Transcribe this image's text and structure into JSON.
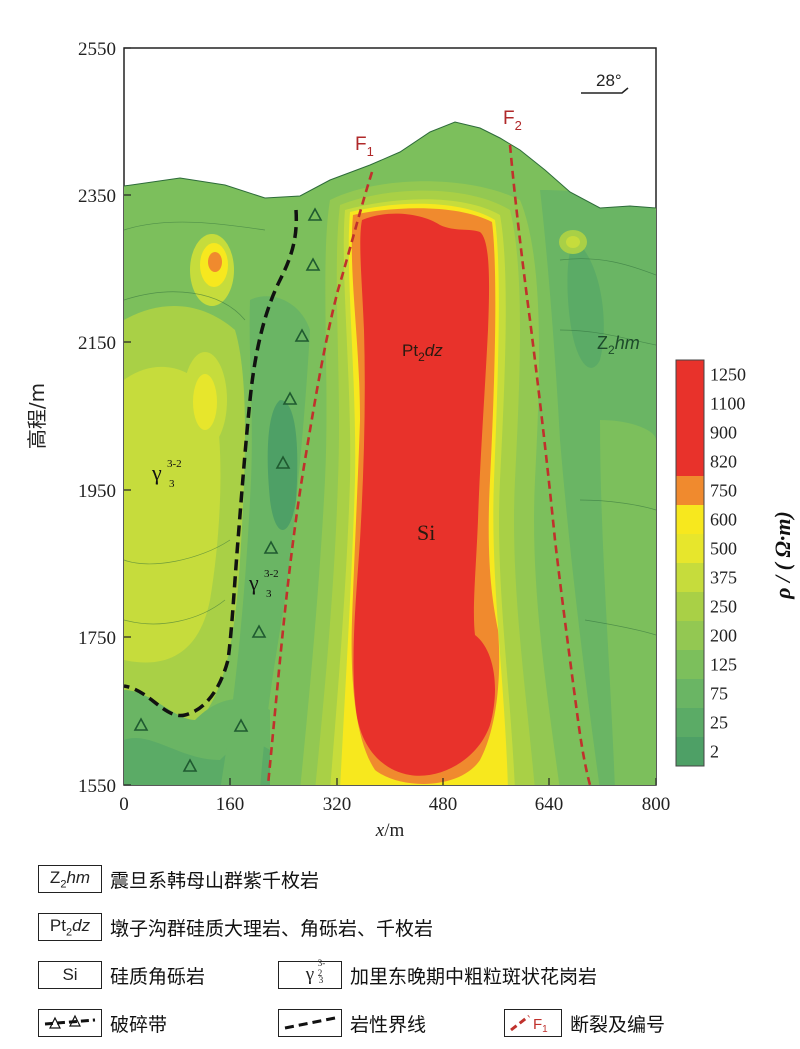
{
  "axes": {
    "y_label": "高程/m",
    "x_label_italic": "x",
    "x_label_unit": "/m",
    "y_ticks": [
      "2550",
      "2350",
      "2150",
      "1950",
      "1750",
      "1550"
    ],
    "x_ticks": [
      "0",
      "160",
      "320",
      "480",
      "640",
      "800"
    ]
  },
  "colorbar": {
    "title": "ρ / ( Ω·m)",
    "levels": [
      "1250",
      "1100",
      "900",
      "820",
      "750",
      "600",
      "500",
      "375",
      "250",
      "200",
      "125",
      "75",
      "25",
      "2"
    ],
    "colors": [
      "#e8322b",
      "#e8322b",
      "#e8322b",
      "#e8322b",
      "#f08a2e",
      "#f7e81e",
      "#e7e62c",
      "#c6dc3c",
      "#a9d046",
      "#93c852",
      "#7cbf5c",
      "#6ab564",
      "#5bab66",
      "#4ea066"
    ]
  },
  "annotations": {
    "dip": "28°",
    "fault1_main": "F",
    "fault1_sub": "1",
    "fault2_main": "F",
    "fault2_sub": "2",
    "pt_main": "Pt",
    "pt_sub": "2",
    "pt_italic": "dz",
    "si": "Si",
    "z_main": "Z",
    "z_sub": "2",
    "z_italic": "hm",
    "gamma": "γ",
    "gamma_sup": "3-2",
    "gamma_sub": "3"
  },
  "legend": {
    "z_symbol_main": "Z",
    "z_symbol_sub": "2",
    "z_symbol_italic": "hm",
    "z_desc": "震旦系韩母山群紫千枚岩",
    "pt_symbol_main": "Pt",
    "pt_symbol_sub": "2",
    "pt_symbol_italic": "dz",
    "pt_desc": "墩子沟群硅质大理岩、角砾岩、千枚岩",
    "si_symbol": "Si",
    "si_desc": "硅质角砾岩",
    "gamma_symbol": "γ",
    "gamma_sup": "3-2",
    "gamma_sub": "3",
    "gamma_desc": "加里东晚期中粗粒斑状花岗岩",
    "breccia_desc": "破碎带",
    "boundary_desc": "岩性界线",
    "fault_symbol_main": "F",
    "fault_symbol_sub": "1",
    "fault_desc": "断裂及编号"
  }
}
